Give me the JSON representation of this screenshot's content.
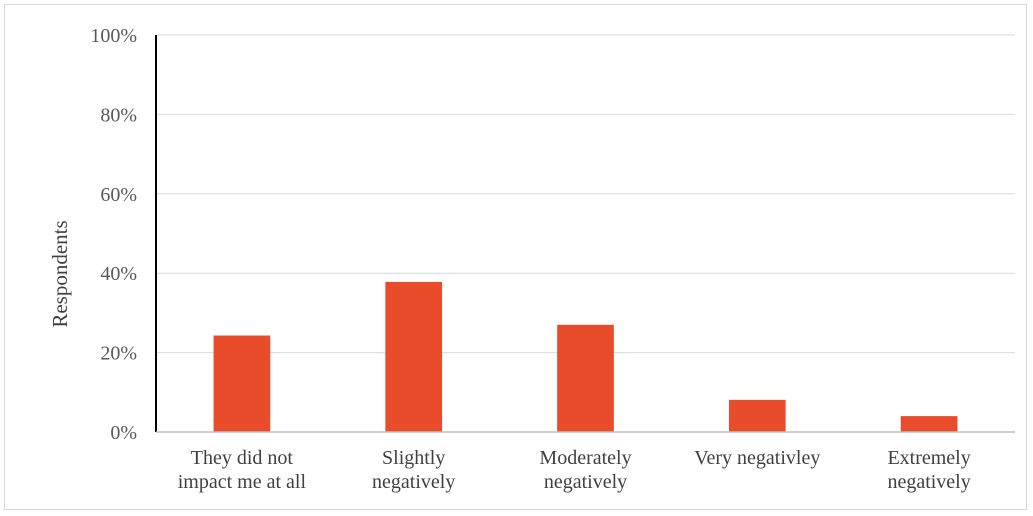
{
  "chart_data": {
    "type": "bar",
    "title": "",
    "xlabel": "",
    "ylabel": "Respondents",
    "categories": [
      [
        "They did not",
        "impact me at all"
      ],
      [
        "Slightly",
        "negatively"
      ],
      [
        "Moderately",
        "negatively"
      ],
      [
        "Very negativley"
      ],
      [
        "Extremely",
        "negatively"
      ]
    ],
    "values": [
      24.3,
      37.8,
      27.0,
      8.1,
      4.0
    ],
    "value_unit": "%",
    "ylim": [
      0,
      100
    ],
    "yticks": [
      0,
      20,
      40,
      60,
      80,
      100
    ],
    "ytick_labels": [
      "0%",
      "20%",
      "40%",
      "60%",
      "80%",
      "100%"
    ],
    "grid": true,
    "legend": "none",
    "bar_color": "#e84c2b"
  }
}
